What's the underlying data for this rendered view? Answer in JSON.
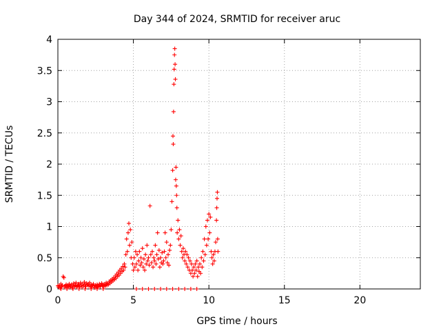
{
  "chart_data": {
    "type": "scatter",
    "title": "Day 344 of 2024, SRMTID for receiver aruc",
    "xlabel": "GPS time / hours",
    "ylabel": "SRMTID / TECUs",
    "xlim": [
      0,
      24
    ],
    "ylim": [
      0,
      4
    ],
    "xticks": [
      0,
      5,
      10,
      15,
      20
    ],
    "xtick_labels": [
      "0",
      "5",
      "10",
      "15",
      "20"
    ],
    "yticks": [
      0,
      0.5,
      1,
      1.5,
      2,
      2.5,
      3,
      3.5,
      4
    ],
    "ytick_labels": [
      "0",
      "0.5",
      "1",
      "1.5",
      "2",
      "2.5",
      "3",
      "3.5",
      "4"
    ],
    "grid": true,
    "marker": "plus",
    "color": "#ff0000",
    "series": [
      {
        "points": [
          [
            0.0,
            0.05
          ],
          [
            0.05,
            0.03
          ],
          [
            0.1,
            0.06
          ],
          [
            0.15,
            0.02
          ],
          [
            0.2,
            0.08
          ],
          [
            0.25,
            0.04
          ],
          [
            0.3,
            0.06
          ],
          [
            0.35,
            0.2
          ],
          [
            0.4,
            0.18
          ],
          [
            0.45,
            0.03
          ],
          [
            0.5,
            0.05
          ],
          [
            0.55,
            0.07
          ],
          [
            0.6,
            0.02
          ],
          [
            0.65,
            0.06
          ],
          [
            0.7,
            0.04
          ],
          [
            0.75,
            0.08
          ],
          [
            0.8,
            0.03
          ],
          [
            0.85,
            0.05
          ],
          [
            0.9,
            0.07
          ],
          [
            0.95,
            0.02
          ],
          [
            1.0,
            0.05
          ],
          [
            1.05,
            0.09
          ],
          [
            1.1,
            0.04
          ],
          [
            1.15,
            0.06
          ],
          [
            1.2,
            0.1
          ],
          [
            1.25,
            0.03
          ],
          [
            1.3,
            0.05
          ],
          [
            1.35,
            0.08
          ],
          [
            1.4,
            0.06
          ],
          [
            1.45,
            0.04
          ],
          [
            1.5,
            0.1
          ],
          [
            1.55,
            0.06
          ],
          [
            1.6,
            0.03
          ],
          [
            1.65,
            0.08
          ],
          [
            1.7,
            0.05
          ],
          [
            1.75,
            0.11
          ],
          [
            1.8,
            0.07
          ],
          [
            1.85,
            0.04
          ],
          [
            1.9,
            0.09
          ],
          [
            1.95,
            0.06
          ],
          [
            2.0,
            0.08
          ],
          [
            2.05,
            0.05
          ],
          [
            2.1,
            0.1
          ],
          [
            2.15,
            0.04
          ],
          [
            2.2,
            0.07
          ],
          [
            2.25,
            0.03
          ],
          [
            2.3,
            0.06
          ],
          [
            2.35,
            0.08
          ],
          [
            2.4,
            0.05
          ],
          [
            2.45,
            0.02
          ],
          [
            2.5,
            0.06
          ],
          [
            2.55,
            0.04
          ],
          [
            2.6,
            0.07
          ],
          [
            2.65,
            0.03
          ],
          [
            2.7,
            0.05
          ],
          [
            2.75,
            0.08
          ],
          [
            2.8,
            0.04
          ],
          [
            2.85,
            0.06
          ],
          [
            2.9,
            0.09
          ],
          [
            2.95,
            0.05
          ],
          [
            3.0,
            0.07
          ],
          [
            3.05,
            0.04
          ],
          [
            3.1,
            0.08
          ],
          [
            3.15,
            0.05
          ],
          [
            3.2,
            0.1
          ],
          [
            3.25,
            0.06
          ],
          [
            3.3,
            0.09
          ],
          [
            3.35,
            0.07
          ],
          [
            3.4,
            0.12
          ],
          [
            3.45,
            0.09
          ],
          [
            3.5,
            0.14
          ],
          [
            3.55,
            0.11
          ],
          [
            3.6,
            0.16
          ],
          [
            3.65,
            0.13
          ],
          [
            3.7,
            0.18
          ],
          [
            3.75,
            0.15
          ],
          [
            3.8,
            0.21
          ],
          [
            3.85,
            0.17
          ],
          [
            3.9,
            0.24
          ],
          [
            3.95,
            0.2
          ],
          [
            4.0,
            0.27
          ],
          [
            4.05,
            0.22
          ],
          [
            4.1,
            0.3
          ],
          [
            4.15,
            0.25
          ],
          [
            4.2,
            0.33
          ],
          [
            4.25,
            0.28
          ],
          [
            4.3,
            0.36
          ],
          [
            4.35,
            0.3
          ],
          [
            4.4,
            0.4
          ],
          [
            4.45,
            0.35
          ],
          [
            4.5,
            0.55
          ],
          [
            4.55,
            0.8
          ],
          [
            4.6,
            0.6
          ],
          [
            4.65,
            0.9
          ],
          [
            4.7,
            1.05
          ],
          [
            4.75,
            0.7
          ],
          [
            4.8,
            0.95
          ],
          [
            4.85,
            0.5
          ],
          [
            4.9,
            0.75
          ],
          [
            4.95,
            0.4
          ],
          [
            5.0,
            0.3
          ],
          [
            5.05,
            0.5
          ],
          [
            5.1,
            0.35
          ],
          [
            5.15,
            0.6
          ],
          [
            5.2,
            0.4
          ],
          [
            5.25,
            0.55
          ],
          [
            5.3,
            0.3
          ],
          [
            5.35,
            0.45
          ],
          [
            5.4,
            0.6
          ],
          [
            5.45,
            0.38
          ],
          [
            5.5,
            0.5
          ],
          [
            5.55,
            0.42
          ],
          [
            5.6,
            0.65
          ],
          [
            5.65,
            0.35
          ],
          [
            5.7,
            0.48
          ],
          [
            5.75,
            0.3
          ],
          [
            5.8,
            0.55
          ],
          [
            5.85,
            0.4
          ],
          [
            5.9,
            0.7
          ],
          [
            5.95,
            0.45
          ],
          [
            6.0,
            0.5
          ],
          [
            6.05,
            0.38
          ],
          [
            6.1,
            1.33
          ],
          [
            6.15,
            0.55
          ],
          [
            6.2,
            0.42
          ],
          [
            6.25,
            0.6
          ],
          [
            6.3,
            0.35
          ],
          [
            6.35,
            0.5
          ],
          [
            6.4,
            0.45
          ],
          [
            6.45,
            0.7
          ],
          [
            6.5,
            0.4
          ],
          [
            6.55,
            0.55
          ],
          [
            6.6,
            0.9
          ],
          [
            6.65,
            0.48
          ],
          [
            6.7,
            0.62
          ],
          [
            6.75,
            0.35
          ],
          [
            6.8,
            0.5
          ],
          [
            6.85,
            0.42
          ],
          [
            6.9,
            0.58
          ],
          [
            6.95,
            0.4
          ],
          [
            7.0,
            0.45
          ],
          [
            7.05,
            0.6
          ],
          [
            7.1,
            0.9
          ],
          [
            7.15,
            0.5
          ],
          [
            7.2,
            0.75
          ],
          [
            7.25,
            0.42
          ],
          [
            7.3,
            0.55
          ],
          [
            7.35,
            0.38
          ],
          [
            7.4,
            0.62
          ],
          [
            7.45,
            0.7
          ],
          [
            7.5,
            0.95
          ],
          [
            7.55,
            1.4
          ],
          [
            7.6,
            1.9
          ],
          [
            7.62,
            2.45
          ],
          [
            7.64,
            2.32
          ],
          [
            7.66,
            2.84
          ],
          [
            7.68,
            3.28
          ],
          [
            7.7,
            3.52
          ],
          [
            7.72,
            3.75
          ],
          [
            7.74,
            3.85
          ],
          [
            7.76,
            3.6
          ],
          [
            7.78,
            3.36
          ],
          [
            7.8,
            1.75
          ],
          [
            7.82,
            1.95
          ],
          [
            7.84,
            1.65
          ],
          [
            7.86,
            1.5
          ],
          [
            7.88,
            1.3
          ],
          [
            7.9,
            0.9
          ],
          [
            7.95,
            1.1
          ],
          [
            8.0,
            0.8
          ],
          [
            8.05,
            0.95
          ],
          [
            8.1,
            0.7
          ],
          [
            8.15,
            0.85
          ],
          [
            8.2,
            0.6
          ],
          [
            8.25,
            0.5
          ],
          [
            8.3,
            0.65
          ],
          [
            8.35,
            0.55
          ],
          [
            8.4,
            0.45
          ],
          [
            8.45,
            0.6
          ],
          [
            8.5,
            0.4
          ],
          [
            8.55,
            0.55
          ],
          [
            8.6,
            0.35
          ],
          [
            8.65,
            0.5
          ],
          [
            8.7,
            0.3
          ],
          [
            8.75,
            0.45
          ],
          [
            8.8,
            0.25
          ],
          [
            8.85,
            0.4
          ],
          [
            8.9,
            0.3
          ],
          [
            8.95,
            0.2
          ],
          [
            9.0,
            0.35
          ],
          [
            9.05,
            0.25
          ],
          [
            9.1,
            0.4
          ],
          [
            9.15,
            0.3
          ],
          [
            9.2,
            0.45
          ],
          [
            9.25,
            0.2
          ],
          [
            9.3,
            0.35
          ],
          [
            9.35,
            0.28
          ],
          [
            9.4,
            0.4
          ],
          [
            9.45,
            0.25
          ],
          [
            9.5,
            0.5
          ],
          [
            9.55,
            0.35
          ],
          [
            9.6,
            0.6
          ],
          [
            9.65,
            0.45
          ],
          [
            9.7,
            0.8
          ],
          [
            9.75,
            0.55
          ],
          [
            9.8,
            1.0
          ],
          [
            9.85,
            0.7
          ],
          [
            9.9,
            1.1
          ],
          [
            9.95,
            0.8
          ],
          [
            10.0,
            1.2
          ],
          [
            10.05,
            0.9
          ],
          [
            10.1,
            1.15
          ],
          [
            10.15,
            0.6
          ],
          [
            10.2,
            0.5
          ],
          [
            10.25,
            0.4
          ],
          [
            10.3,
            0.55
          ],
          [
            10.35,
            0.45
          ],
          [
            10.4,
            0.6
          ],
          [
            10.45,
            0.75
          ],
          [
            10.5,
            1.1
          ],
          [
            10.52,
            1.3
          ],
          [
            10.54,
            1.45
          ],
          [
            10.56,
            1.55
          ],
          [
            10.58,
            0.8
          ],
          [
            10.6,
            0.6
          ],
          [
            0.2,
            0.0
          ],
          [
            0.6,
            0.0
          ],
          [
            1.0,
            0.0
          ],
          [
            1.4,
            0.0
          ],
          [
            1.8,
            0.0
          ],
          [
            2.2,
            0.0
          ],
          [
            2.6,
            0.0
          ],
          [
            3.0,
            0.0
          ],
          [
            5.2,
            0.0
          ],
          [
            5.6,
            0.0
          ],
          [
            6.0,
            0.0
          ],
          [
            6.4,
            0.0
          ],
          [
            6.8,
            0.0
          ],
          [
            7.2,
            0.0
          ],
          [
            7.6,
            0.0
          ],
          [
            8.0,
            0.0
          ],
          [
            8.4,
            0.0
          ],
          [
            8.8,
            0.0
          ],
          [
            9.2,
            0.0
          ]
        ]
      }
    ]
  }
}
